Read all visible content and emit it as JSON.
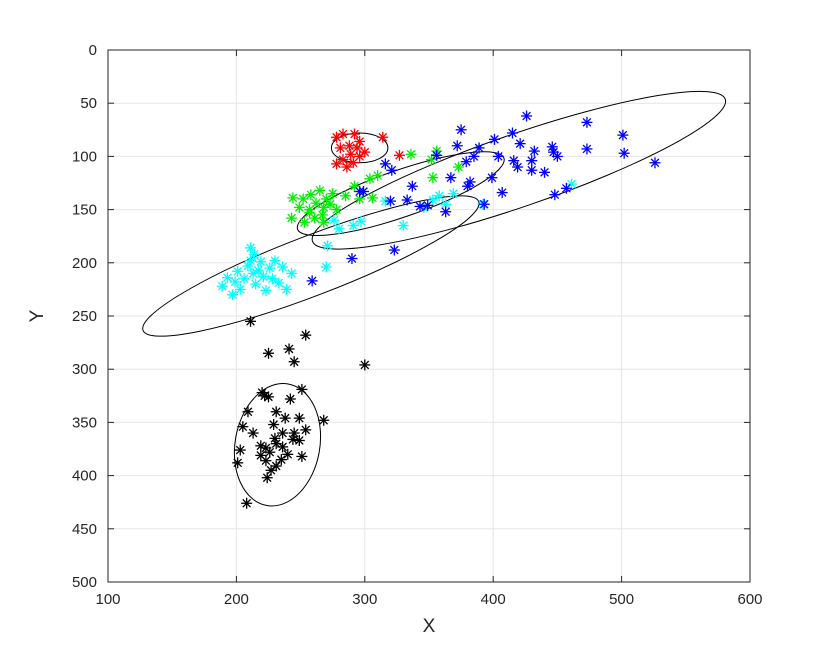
{
  "chart_data": {
    "type": "scatter",
    "title": "",
    "xlabel": "X",
    "ylabel": "Y",
    "xlim": [
      100,
      600
    ],
    "ylim": [
      0,
      500
    ],
    "y_reversed": true,
    "xticks": [
      100,
      200,
      300,
      400,
      500,
      600
    ],
    "yticks": [
      0,
      50,
      100,
      150,
      200,
      250,
      300,
      350,
      400,
      450,
      500
    ],
    "grid": true,
    "marker": "asterisk",
    "series": [
      {
        "color": "#ff0000",
        "points": [
          [
            278,
            82
          ],
          [
            283,
            79
          ],
          [
            292,
            79
          ],
          [
            296,
            86
          ],
          [
            288,
            90
          ],
          [
            281,
            92
          ],
          [
            289,
            98
          ],
          [
            296,
            100
          ],
          [
            283,
            103
          ],
          [
            291,
            106
          ],
          [
            278,
            107
          ],
          [
            286,
            110
          ],
          [
            300,
            96
          ],
          [
            314,
            82
          ],
          [
            327,
            99
          ],
          [
            294,
            92
          ]
        ]
      },
      {
        "color": "#00ee00",
        "points": [
          [
            244,
            139
          ],
          [
            252,
            140
          ],
          [
            258,
            136
          ],
          [
            265,
            132
          ],
          [
            270,
            140
          ],
          [
            275,
            135
          ],
          [
            249,
            148
          ],
          [
            257,
            150
          ],
          [
            262,
            144
          ],
          [
            268,
            148
          ],
          [
            273,
            145
          ],
          [
            278,
            150
          ],
          [
            261,
            158
          ],
          [
            267,
            155
          ],
          [
            243,
            158
          ],
          [
            285,
            137
          ],
          [
            292,
            128
          ],
          [
            296,
            140
          ],
          [
            304,
            121
          ],
          [
            310,
            118
          ],
          [
            306,
            139
          ],
          [
            336,
            98
          ],
          [
            352,
            103
          ],
          [
            356,
            95
          ],
          [
            353,
            120
          ],
          [
            373,
            110
          ],
          [
            253,
            162
          ],
          [
            268,
            162
          ],
          [
            257,
            153
          ]
        ]
      },
      {
        "color": "#00ffff",
        "points": [
          [
            189,
            222
          ],
          [
            193,
            214
          ],
          [
            197,
            230
          ],
          [
            199,
            218
          ],
          [
            201,
            208
          ],
          [
            203,
            225
          ],
          [
            206,
            215
          ],
          [
            209,
            203
          ],
          [
            211,
            198
          ],
          [
            213,
            210
          ],
          [
            215,
            220
          ],
          [
            217,
            207
          ],
          [
            219,
            199
          ],
          [
            221,
            213
          ],
          [
            223,
            226
          ],
          [
            226,
            205
          ],
          [
            228,
            215
          ],
          [
            230,
            198
          ],
          [
            233,
            219
          ],
          [
            236,
            204
          ],
          [
            239,
            225
          ],
          [
            243,
            210
          ],
          [
            211,
            186
          ],
          [
            214,
            192
          ],
          [
            271,
            184
          ],
          [
            270,
            204
          ],
          [
            276,
            160
          ],
          [
            280,
            168
          ],
          [
            291,
            165
          ],
          [
            297,
            161
          ],
          [
            316,
            142
          ],
          [
            330,
            165
          ],
          [
            346,
            148
          ],
          [
            353,
            141
          ],
          [
            358,
            137
          ],
          [
            363,
            145
          ],
          [
            369,
            135
          ],
          [
            392,
            145
          ],
          [
            461,
            126
          ]
        ]
      },
      {
        "color": "#0000ff",
        "points": [
          [
            259,
            217
          ],
          [
            290,
            196
          ],
          [
            299,
            133
          ],
          [
            321,
            113
          ],
          [
            323,
            188
          ],
          [
            333,
            141
          ],
          [
            337,
            128
          ],
          [
            356,
            99
          ],
          [
            349,
            146
          ],
          [
            363,
            152
          ],
          [
            367,
            120
          ],
          [
            372,
            90
          ],
          [
            375,
            75
          ],
          [
            379,
            105
          ],
          [
            380,
            128
          ],
          [
            382,
            124
          ],
          [
            385,
            100
          ],
          [
            389,
            92
          ],
          [
            393,
            145
          ],
          [
            399,
            120
          ],
          [
            401,
            84
          ],
          [
            404,
            100
          ],
          [
            407,
            134
          ],
          [
            415,
            78
          ],
          [
            416,
            104
          ],
          [
            419,
            110
          ],
          [
            421,
            88
          ],
          [
            426,
            62
          ],
          [
            430,
            104
          ],
          [
            430,
            113
          ],
          [
            432,
            95
          ],
          [
            440,
            115
          ],
          [
            446,
            91
          ],
          [
            447,
            96
          ],
          [
            448,
            136
          ],
          [
            450,
            100
          ],
          [
            457,
            130
          ],
          [
            473,
            68
          ],
          [
            473,
            93
          ],
          [
            501,
            80
          ],
          [
            502,
            97
          ],
          [
            526,
            106
          ],
          [
            296,
            133
          ],
          [
            320,
            142
          ],
          [
            343,
            147
          ],
          [
            316,
            107
          ]
        ]
      },
      {
        "color": "#000000",
        "points": [
          [
            211,
            255
          ],
          [
            225,
            285
          ],
          [
            241,
            281
          ],
          [
            254,
            268
          ],
          [
            300,
            296
          ],
          [
            245,
            293
          ],
          [
            209,
            340
          ],
          [
            220,
            322
          ],
          [
            222,
            325
          ],
          [
            225,
            326
          ],
          [
            251,
            319
          ],
          [
            242,
            328
          ],
          [
            231,
            340
          ],
          [
            238,
            346
          ],
          [
            249,
            346
          ],
          [
            254,
            357
          ],
          [
            268,
            348
          ],
          [
            229,
            352
          ],
          [
            236,
            360
          ],
          [
            245,
            360
          ],
          [
            205,
            354
          ],
          [
            213,
            360
          ],
          [
            219,
            372
          ],
          [
            223,
            374
          ],
          [
            226,
            378
          ],
          [
            231,
            370
          ],
          [
            236,
            373
          ],
          [
            244,
            366
          ],
          [
            249,
            367
          ],
          [
            240,
            380
          ],
          [
            251,
            382
          ],
          [
            203,
            376
          ],
          [
            201,
            388
          ],
          [
            223,
            386
          ],
          [
            227,
            395
          ],
          [
            235,
            385
          ],
          [
            231,
            391
          ],
          [
            219,
            381
          ],
          [
            224,
            402
          ],
          [
            208,
            426
          ],
          [
            230,
            365
          ]
        ]
      }
    ],
    "ellipses": [
      {
        "cx": 296,
        "cy": 92,
        "rx": 22,
        "ry": 14,
        "angle_deg": 0
      },
      {
        "cx": 328,
        "cy": 135,
        "rx": 85,
        "ry": 22,
        "angle_deg": -19
      },
      {
        "cx": 258,
        "cy": 203,
        "rx": 140,
        "ry": 28,
        "angle_deg": -21
      },
      {
        "cx": 420,
        "cy": 113,
        "rx": 170,
        "ry": 34,
        "angle_deg": -19
      },
      {
        "cx": 232,
        "cy": 371,
        "rx": 33,
        "ry": 58,
        "angle_deg": 10
      }
    ]
  }
}
